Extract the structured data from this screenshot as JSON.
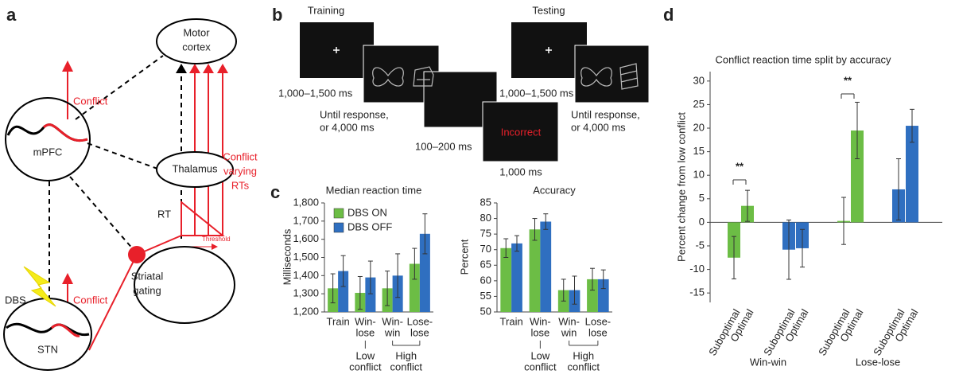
{
  "panel_labels": [
    "a",
    "b",
    "c",
    "d"
  ],
  "diagram": {
    "nodes": [
      {
        "label": [
          "Motor",
          "cortex"
        ]
      },
      {
        "label": [
          "Thalamus"
        ]
      },
      {
        "label": [
          "mPFC"
        ]
      },
      {
        "label": [
          "Striatal",
          "gating"
        ]
      },
      {
        "label": [
          "STN"
        ]
      }
    ],
    "labels": {
      "conflict_mpfc": "Conflict",
      "conflict_stn": "Conflict",
      "dbs": "DBS",
      "rt": "RT",
      "conflict_rts": [
        "Conflict",
        "varying",
        "RTs"
      ],
      "threshold": "Threshold"
    }
  },
  "task": {
    "phases": [
      "Training",
      "Testing"
    ],
    "screen_labels": [
      [
        "1,000–1,500 ms"
      ],
      [
        "Until response,",
        "or 4,000 ms"
      ],
      [
        "100–200 ms"
      ],
      [
        "1,000 ms"
      ],
      [
        "1,000–1,500 ms"
      ],
      [
        "Until response,",
        "or 4,000 ms"
      ]
    ],
    "feedback": "Incorrect"
  },
  "chart_data": [
    {
      "type": "bar",
      "title": "Median reaction time",
      "y_label": "Milliseconds",
      "groups": [
        {
          "categories": [
            [
              "Train"
            ]
          ]
        },
        {
          "label": [
            "Low",
            "conflict"
          ],
          "categories": [
            [
              "Win-",
              "lose"
            ]
          ]
        },
        {
          "label": [
            "High",
            "conflict"
          ],
          "categories": [
            [
              "Win-",
              "win"
            ],
            [
              "Lose-",
              "lose"
            ]
          ]
        }
      ],
      "series": [
        {
          "name": "DBS ON",
          "color": "#6cbd45",
          "values": [
            1330,
            1305,
            1330,
            1465
          ],
          "errors": [
            80,
            90,
            95,
            85
          ]
        },
        {
          "name": "DBS OFF",
          "color": "#2f6fc0",
          "values": [
            1425,
            1390,
            1400,
            1630
          ],
          "errors": [
            85,
            90,
            120,
            110
          ]
        }
      ],
      "ylim": [
        1200,
        1800
      ],
      "yticks": [
        {
          "value": 1200,
          "label": "1,200"
        },
        {
          "value": 1300,
          "label": "1,300"
        },
        {
          "value": 1400,
          "label": "1,400"
        },
        {
          "value": 1500,
          "label": "1,500"
        },
        {
          "value": 1600,
          "label": "1,600"
        },
        {
          "value": 1700,
          "label": "1,700"
        },
        {
          "value": 1800,
          "label": "1,800"
        }
      ],
      "legend": "top-left"
    },
    {
      "type": "bar",
      "title": "Accuracy",
      "y_label": "Percent",
      "groups": [
        {
          "categories": [
            [
              "Train"
            ]
          ]
        },
        {
          "label": [
            "Low",
            "conflict"
          ],
          "categories": [
            [
              "Win-",
              "lose"
            ]
          ]
        },
        {
          "label": [
            "High",
            "conflict"
          ],
          "categories": [
            [
              "Win-",
              "win"
            ],
            [
              "Lose-",
              "lose"
            ]
          ]
        }
      ],
      "series": [
        {
          "color": "#6cbd45",
          "values": [
            70.5,
            76.5,
            57,
            60.5
          ],
          "errors": [
            3,
            3.5,
            3.5,
            3.5
          ]
        },
        {
          "color": "#2f6fc0",
          "values": [
            72,
            79,
            57,
            60.5
          ],
          "errors": [
            2.5,
            2.5,
            4.5,
            3
          ]
        }
      ],
      "ylim": [
        50,
        85
      ],
      "yticks": [
        50,
        55,
        60,
        65,
        70,
        75,
        80,
        85
      ]
    },
    {
      "type": "bar",
      "title": "Conflict reaction time split by accuracy",
      "y_label": "Percent change from low conflict",
      "groups": [
        {
          "label": [
            "Win-win"
          ],
          "categories": [
            [
              "Suboptimal"
            ],
            [
              "Optimal"
            ],
            [
              "Suboptimal"
            ],
            [
              "Optimal"
            ]
          ]
        },
        {
          "label": [
            "Lose-lose"
          ],
          "categories": [
            [
              "Suboptimal"
            ],
            [
              "Optimal"
            ],
            [
              "Suboptimal"
            ],
            [
              "Optimal"
            ]
          ]
        }
      ],
      "series": [
        {
          "color": "#6cbd45",
          "values": [
            -7.5,
            3.5,
            null,
            null,
            0.3,
            19.5,
            null,
            null
          ],
          "errors": [
            4.5,
            3.3,
            null,
            null,
            5,
            6,
            null,
            null
          ]
        },
        {
          "color": "#2f6fc0",
          "values": [
            null,
            null,
            -5.8,
            -5.5,
            null,
            null,
            7,
            20.5
          ],
          "errors": [
            null,
            null,
            6.3,
            4,
            null,
            null,
            6.5,
            3.5
          ]
        }
      ],
      "ylim": [
        -17,
        32
      ],
      "yticks": [
        -15,
        -10,
        -5,
        0,
        5,
        10,
        15,
        20,
        25,
        30
      ],
      "annotations": [
        "**",
        "**"
      ]
    }
  ]
}
